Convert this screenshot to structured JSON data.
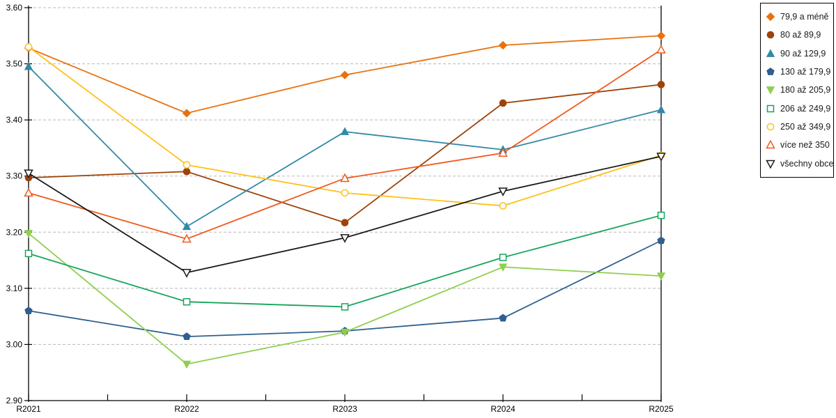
{
  "chart_data": {
    "type": "line",
    "categories": [
      "R2021",
      "R2022",
      "R2023",
      "R2024",
      "R2025"
    ],
    "series": [
      {
        "name": "79,9 a méně",
        "marker": "diamond",
        "color": "#E8710D",
        "values": [
          3.528,
          3.412,
          3.48,
          3.533,
          3.55
        ]
      },
      {
        "name": "80 až 89,9",
        "marker": "circle",
        "color": "#9E4209",
        "values": [
          3.297,
          3.308,
          3.217,
          3.43,
          3.463
        ]
      },
      {
        "name": "90 až 129,9",
        "marker": "triangle-up",
        "color": "#3389A8",
        "values": [
          3.495,
          3.21,
          3.379,
          3.347,
          3.418
        ]
      },
      {
        "name": "130 až 179,9",
        "marker": "pentagon",
        "color": "#2F5F8F",
        "values": [
          3.06,
          3.014,
          3.024,
          3.047,
          3.185
        ]
      },
      {
        "name": "180 až 205,9",
        "marker": "triangle-down",
        "color": "#90CE4E",
        "values": [
          3.198,
          2.965,
          3.022,
          3.138,
          3.122
        ]
      },
      {
        "name": "206 až 249,9",
        "marker": "square-open",
        "color": "#17A45C",
        "values": [
          3.162,
          3.076,
          3.067,
          3.155,
          3.23
        ]
      },
      {
        "name": "250 až 349,9",
        "marker": "circle-open",
        "color": "#FFC01A",
        "values": [
          3.53,
          3.32,
          3.27,
          3.247,
          3.337
        ]
      },
      {
        "name": "více než 350",
        "marker": "triangle-up-open",
        "color": "#F1591C",
        "values": [
          3.27,
          3.188,
          3.296,
          3.341,
          3.525
        ]
      },
      {
        "name": "všechny obce",
        "marker": "triangle-down-open",
        "color": "#1A1A1A",
        "values": [
          3.305,
          3.128,
          3.19,
          3.273,
          3.335
        ]
      }
    ],
    "title": "",
    "xlabel": "",
    "ylabel": "",
    "ylim": [
      2.9,
      3.6
    ],
    "ytick_step": 0.1,
    "ytick_labels": [
      "2.90",
      "3.00",
      "3.10",
      "3.20",
      "3.30",
      "3.40",
      "3.50",
      "3.60"
    ],
    "grid": "horizontal-dashed",
    "grid_color": "#b8b8b8",
    "axis_color": "#000000",
    "legend_position": "top-right-outside"
  }
}
